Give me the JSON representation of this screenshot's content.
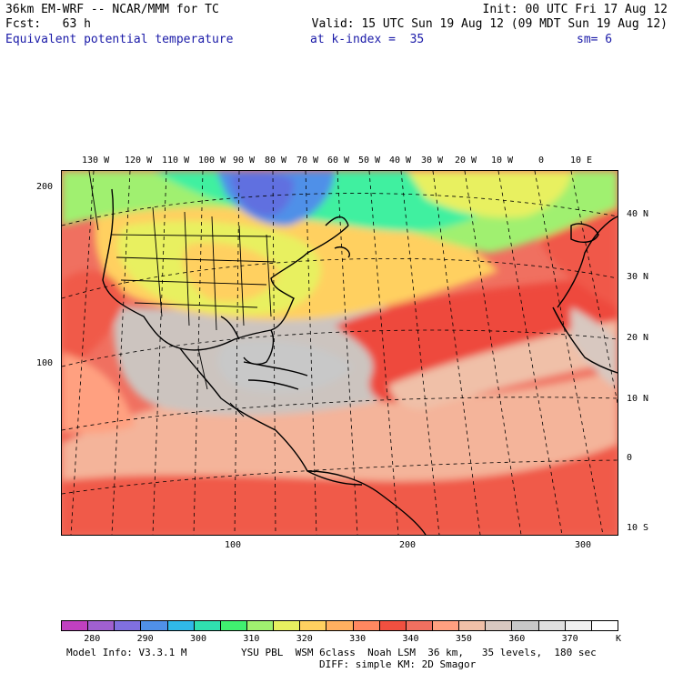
{
  "header": {
    "line1_left": "36km EM-WRF -- NCAR/MMM for TC",
    "line1_right": "Init: 00 UTC Fri 17 Aug 12",
    "line2_left": "Fcst:   63 h",
    "line2_right": "Valid: 15 UTC Sun 19 Aug 12 (09 MDT Sun 19 Aug 12)",
    "field": "Equivalent potential temperature",
    "level": "at k-index =  35",
    "smooth": "sm= 6"
  },
  "map": {
    "top_lon_labels": [
      "130 W",
      "120 W",
      "110 W",
      "100 W",
      "90 W",
      "80 W",
      "70 W",
      "60 W",
      "50 W",
      "40 W",
      "30 W",
      "20 W",
      "10 W",
      "0",
      "10 E"
    ],
    "right_lat_labels": [
      "40 N",
      "30 N",
      "20 N",
      "10 N",
      "0",
      "10 S"
    ],
    "left_grid_labels": [
      "200",
      "100"
    ],
    "bottom_grid_labels": [
      "100",
      "200",
      "300"
    ]
  },
  "colorbar": {
    "colors": [
      "#c040c0",
      "#a060d0",
      "#8070e0",
      "#5090e8",
      "#30b8e8",
      "#30e0b0",
      "#40f070",
      "#a0f070",
      "#e8f060",
      "#ffd060",
      "#ffb060",
      "#ff8860",
      "#f05040",
      "#f07060",
      "#ffa080",
      "#f0c0a8",
      "#d8c8c0",
      "#c8c8c8",
      "#e0e0e0",
      "#f0f0f0",
      "#ffffff"
    ],
    "labels": [
      "280",
      "290",
      "300",
      "310",
      "320",
      "330",
      "340",
      "350",
      "360",
      "370"
    ],
    "unit": "K"
  },
  "footer": {
    "model": "Model Info: V3.3.1 M",
    "physics1": "YSU PBL  WSM 6class  Noah LSM  36 km,   35 levels,  180 sec",
    "physics2": "DIFF: simple KM: 2D Smagor"
  }
}
